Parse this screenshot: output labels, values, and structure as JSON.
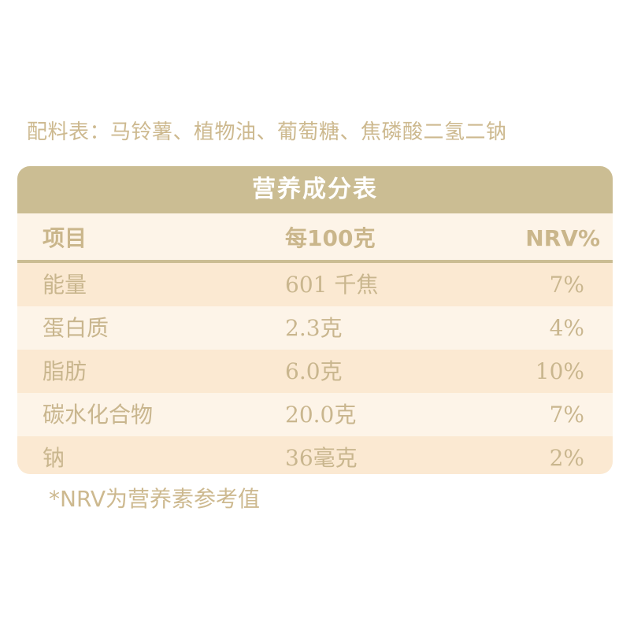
{
  "ingredients": "配料表：马铃薯、植物油、葡萄糖、焦磷酸二氢二钠",
  "table": {
    "title": "营养成分表",
    "headers": {
      "item": "项目",
      "per100": "每100克",
      "nrv": "NRV%"
    },
    "rows": [
      {
        "item": "能量",
        "per100": "601 千焦",
        "nrv": "7%"
      },
      {
        "item": "蛋白质",
        "per100": "2.3克",
        "nrv": "4%"
      },
      {
        "item": "脂肪",
        "per100": "6.0克",
        "nrv": "10%"
      },
      {
        "item": "碳水化合物",
        "per100": "20.0克",
        "nrv": "7%"
      },
      {
        "item": "钠",
        "per100": "36毫克",
        "nrv": "2%"
      }
    ]
  },
  "footnote": "*NRV为营养素参考值",
  "colors": {
    "accent": "#cbbd93",
    "text": "#c9b68e",
    "row_light": "#fdf4e8",
    "row_dark": "#fbe9d2"
  }
}
